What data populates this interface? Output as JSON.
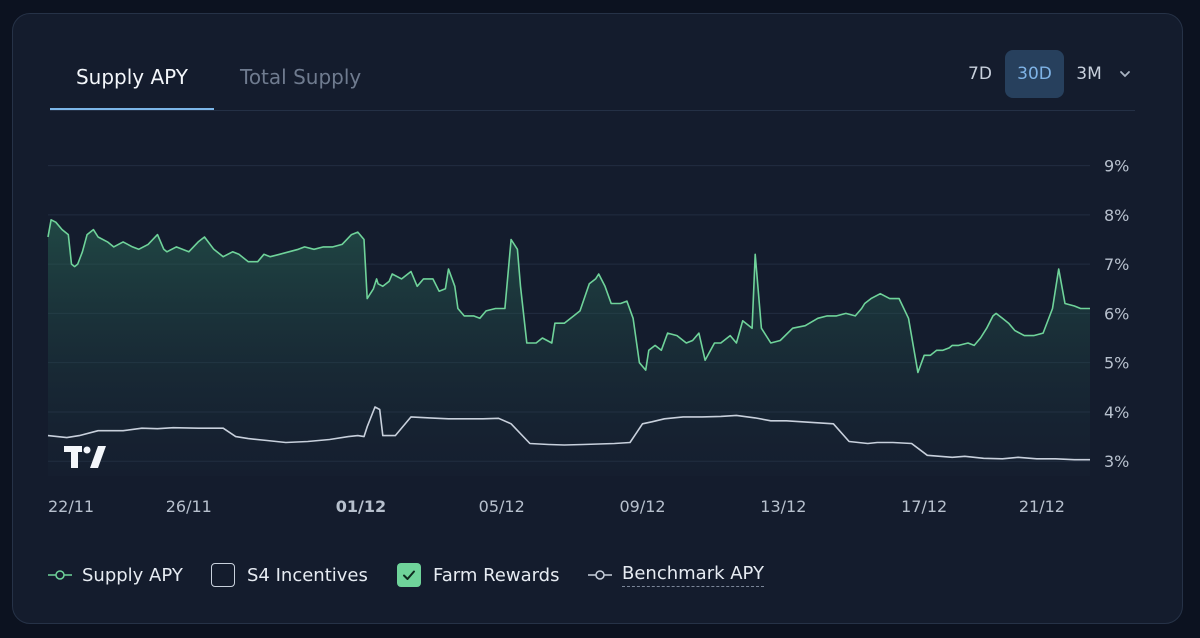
{
  "tabs": [
    {
      "label": "Supply APY",
      "active": true
    },
    {
      "label": "Total Supply",
      "active": false
    }
  ],
  "ranges": [
    {
      "label": "7D",
      "active": false
    },
    {
      "label": "30D",
      "active": true
    },
    {
      "label": "3M",
      "active": false
    }
  ],
  "range_menu_icon": "chevron-down-icon",
  "chart_logo": "tradingview-logo",
  "legend": [
    {
      "label": "Supply APY",
      "kind": "line-marker",
      "color": "#6fd39a"
    },
    {
      "label": "S4 Incentives",
      "kind": "checkbox",
      "checked": false
    },
    {
      "label": "Farm Rewards",
      "kind": "checkbox",
      "checked": true,
      "color": "#6fd39a"
    },
    {
      "label": "Benchmark APY",
      "kind": "line-marker",
      "color": "#c8d0dc"
    }
  ],
  "colors": {
    "supply": "#6fd39a",
    "benchmark": "#c8d0dc",
    "accent_tab": "#7cb6e8",
    "active_range_bg": "#27405d"
  },
  "chart_data": {
    "type": "area",
    "x_tick_labels": [
      "22/11",
      "26/11",
      "01/12",
      "05/12",
      "09/12",
      "13/12",
      "17/12",
      "21/12"
    ],
    "x_tick_positions": [
      0,
      4.5,
      10,
      14.5,
      19,
      23.5,
      28,
      32.5
    ],
    "bold_tick": "01/12",
    "y_tick_labels": [
      "9%",
      "8%",
      "7%",
      "6%",
      "5%",
      "4%",
      "3%"
    ],
    "y_tick_values": [
      9,
      8,
      7,
      6,
      5,
      4,
      3
    ],
    "xlim": [
      0,
      33.3
    ],
    "ylim": [
      2.7,
      9.6
    ],
    "grid": true,
    "series": [
      {
        "name": "Supply APY",
        "color": "#6fd39a",
        "fill": true,
        "x": [
          0,
          0.1,
          0.25,
          0.45,
          0.65,
          0.75,
          0.85,
          0.95,
          1.1,
          1.25,
          1.45,
          1.6,
          1.9,
          2.1,
          2.4,
          2.7,
          2.9,
          3.2,
          3.5,
          3.7,
          3.8,
          4.1,
          4.5,
          4.8,
          5.0,
          5.3,
          5.6,
          5.9,
          6.1,
          6.4,
          6.7,
          6.9,
          7.1,
          7.4,
          7.7,
          8.0,
          8.2,
          8.5,
          8.8,
          9.1,
          9.4,
          9.7,
          9.9,
          10.1,
          10.2,
          10.4,
          10.5,
          10.55,
          10.7,
          10.9,
          11.0,
          11.3,
          11.6,
          11.8,
          12.0,
          12.3,
          12.5,
          12.7,
          12.8,
          13.0,
          13.1,
          13.3,
          13.6,
          13.8,
          14.0,
          14.3,
          14.6,
          14.8,
          15.0,
          15.1,
          15.3,
          15.6,
          15.8,
          16.1,
          16.2,
          16.5,
          16.8,
          17.0,
          17.3,
          17.5,
          17.6,
          17.8,
          18.0,
          18.3,
          18.5,
          18.7,
          18.9,
          19.1,
          19.2,
          19.4,
          19.6,
          19.8,
          20.1,
          20.4,
          20.6,
          20.8,
          21.0,
          21.3,
          21.5,
          21.8,
          22.0,
          22.2,
          22.5,
          22.6,
          22.8,
          23.1,
          23.4,
          23.8,
          24.2,
          24.6,
          24.9,
          25.2,
          25.5,
          25.8,
          26.0,
          26.1,
          26.3,
          26.6,
          26.9,
          27.2,
          27.5,
          27.8,
          28.0,
          28.2,
          28.4,
          28.6,
          28.8,
          28.9,
          29.1,
          29.4,
          29.6,
          29.8,
          30.0,
          30.2,
          30.3,
          30.5,
          30.7,
          30.9,
          31.2,
          31.5,
          31.8,
          32.1,
          32.3,
          32.5,
          32.8,
          33.0,
          33.2,
          33.3
        ],
        "values": [
          7.55,
          7.9,
          7.85,
          7.7,
          7.6,
          7.0,
          6.95,
          7.0,
          7.25,
          7.6,
          7.7,
          7.55,
          7.45,
          7.35,
          7.45,
          7.35,
          7.3,
          7.4,
          7.6,
          7.3,
          7.25,
          7.35,
          7.25,
          7.45,
          7.55,
          7.3,
          7.15,
          7.25,
          7.2,
          7.05,
          7.05,
          7.2,
          7.15,
          7.2,
          7.25,
          7.3,
          7.35,
          7.3,
          7.35,
          7.35,
          7.4,
          7.6,
          7.65,
          7.5,
          6.3,
          6.5,
          6.7,
          6.6,
          6.55,
          6.65,
          6.8,
          6.7,
          6.85,
          6.55,
          6.7,
          6.7,
          6.45,
          6.5,
          6.9,
          6.55,
          6.1,
          5.95,
          5.95,
          5.9,
          6.05,
          6.1,
          6.1,
          7.5,
          7.3,
          6.55,
          5.4,
          5.4,
          5.5,
          5.4,
          5.8,
          5.8,
          5.95,
          6.05,
          6.6,
          6.7,
          6.8,
          6.55,
          6.2,
          6.2,
          6.25,
          5.9,
          5.0,
          4.85,
          5.25,
          5.35,
          5.25,
          5.6,
          5.55,
          5.4,
          5.45,
          5.6,
          5.05,
          5.4,
          5.4,
          5.55,
          5.4,
          5.85,
          5.7,
          7.2,
          5.7,
          5.4,
          5.45,
          5.7,
          5.75,
          5.9,
          5.95,
          5.95,
          6.0,
          5.95,
          6.1,
          6.2,
          6.3,
          6.4,
          6.3,
          6.3,
          5.9,
          4.8,
          5.15,
          5.15,
          5.25,
          5.25,
          5.3,
          5.35,
          5.35,
          5.4,
          5.35,
          5.5,
          5.7,
          5.95,
          6.0,
          5.9,
          5.8,
          5.65,
          5.55,
          5.55,
          5.6,
          6.1,
          6.9,
          6.2,
          6.15,
          6.1,
          6.1,
          6.1
        ]
      },
      {
        "name": "Benchmark APY",
        "color": "#c8d0dc",
        "fill": false,
        "x": [
          0,
          0.6,
          1.0,
          1.6,
          2.4,
          3.0,
          3.5,
          4.0,
          4.8,
          5.6,
          6.0,
          6.4,
          7.0,
          7.6,
          8.3,
          9.0,
          9.6,
          9.9,
          10.1,
          10.2,
          10.45,
          10.6,
          10.7,
          11.1,
          11.6,
          12.2,
          12.8,
          13.3,
          13.9,
          14.4,
          14.8,
          15.4,
          16.0,
          16.5,
          17.1,
          17.6,
          18.1,
          18.6,
          19.0,
          19.3,
          19.7,
          20.3,
          20.9,
          21.5,
          22.0,
          22.6,
          23.1,
          23.6,
          24.1,
          24.6,
          25.1,
          25.6,
          26.2,
          26.5,
          27.0,
          27.6,
          28.1,
          28.5,
          28.9,
          29.3,
          29.9,
          30.5,
          31.0,
          31.6,
          32.2,
          32.8,
          33.3
        ],
        "values": [
          3.52,
          3.48,
          3.52,
          3.62,
          3.62,
          3.67,
          3.66,
          3.68,
          3.67,
          3.67,
          3.5,
          3.46,
          3.42,
          3.38,
          3.4,
          3.44,
          3.5,
          3.52,
          3.5,
          3.7,
          4.1,
          4.05,
          3.52,
          3.52,
          3.9,
          3.88,
          3.86,
          3.86,
          3.86,
          3.87,
          3.76,
          3.36,
          3.34,
          3.33,
          3.34,
          3.35,
          3.36,
          3.38,
          3.76,
          3.8,
          3.86,
          3.9,
          3.9,
          3.91,
          3.93,
          3.88,
          3.82,
          3.82,
          3.8,
          3.78,
          3.76,
          3.4,
          3.36,
          3.38,
          3.38,
          3.36,
          3.12,
          3.1,
          3.08,
          3.1,
          3.06,
          3.05,
          3.08,
          3.05,
          3.05,
          3.03,
          3.03
        ]
      }
    ]
  }
}
